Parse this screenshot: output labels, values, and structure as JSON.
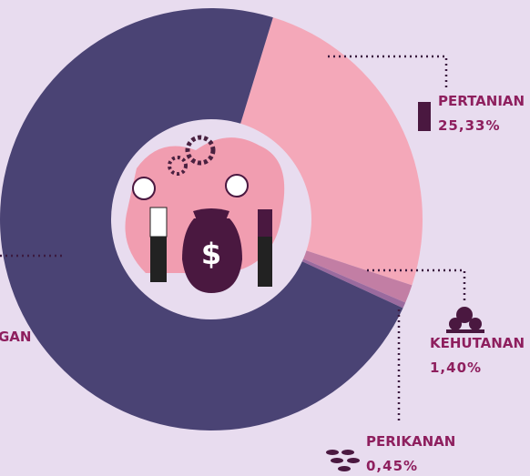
{
  "chart_data": {
    "type": "donut",
    "categories": [
      "PERTANIAN",
      "KEHUTANAN",
      "PERIKANAN",
      "GAN"
    ],
    "values": [
      25.33,
      1.4,
      0.45,
      72.82
    ],
    "value_labels": [
      "25,33%",
      "1,40%",
      "0,45%",
      null
    ],
    "colors": [
      "#f4a8b9",
      "#c27ea4",
      "#9a6a9e",
      "#4a4374"
    ]
  }
}
